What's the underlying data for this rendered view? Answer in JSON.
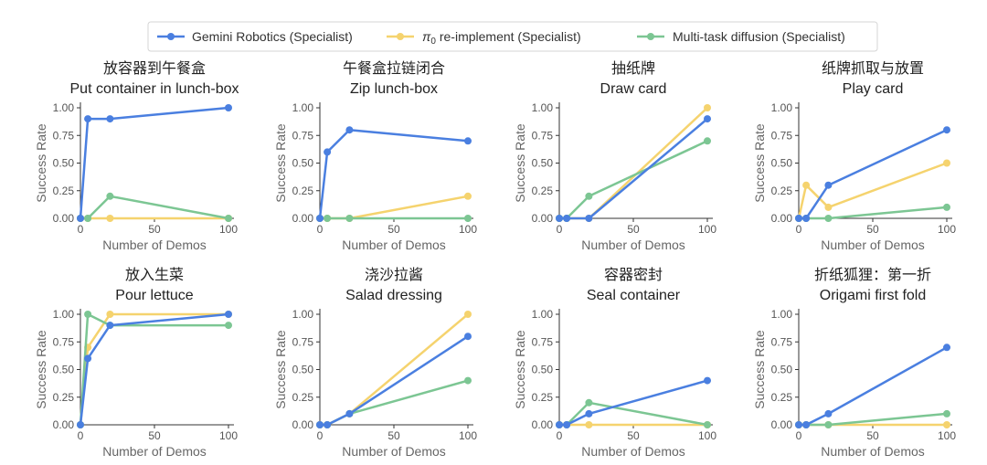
{
  "legend": {
    "entries": [
      {
        "name_pre": "Gemini Robotics (Specialist)",
        "name_sub": "",
        "name_post": "",
        "color": "#4a7fe0"
      },
      {
        "name_pre": "π",
        "name_sub": "0",
        "name_post": " re-implement (Specialist)",
        "color": "#f5d36e"
      },
      {
        "name_pre": "Multi-task diffusion (Specialist)",
        "name_sub": "",
        "name_post": "",
        "color": "#7cc693"
      }
    ]
  },
  "chart_data": [
    {
      "type": "line",
      "title_zh": "放容器到午餐盒",
      "title": "Put container in lunch-box",
      "xlabel": "Number of Demos",
      "ylabel": "Success Rate",
      "xlim": [
        0,
        100
      ],
      "ylim": [
        0,
        1
      ],
      "x_ticks": [
        0,
        50,
        100
      ],
      "y_ticks": [
        "0.00",
        "0.25",
        "0.50",
        "0.75",
        "1.00"
      ],
      "x": [
        0,
        5,
        20,
        100
      ],
      "series": [
        {
          "name": "Gemini Robotics (Specialist)",
          "values": [
            0,
            0.9,
            0.9,
            1.0
          ]
        },
        {
          "name": "π0 re-implement (Specialist)",
          "values": [
            0,
            0,
            0,
            0
          ]
        },
        {
          "name": "Multi-task diffusion (Specialist)",
          "values": [
            0,
            0,
            0.2,
            0
          ]
        }
      ]
    },
    {
      "type": "line",
      "title_zh": "午餐盒拉链闭合",
      "title": "Zip lunch-box",
      "xlabel": "Number of Demos",
      "ylabel": "Success Rate",
      "xlim": [
        0,
        100
      ],
      "ylim": [
        0,
        1
      ],
      "x_ticks": [
        0,
        50,
        100
      ],
      "y_ticks": [
        "0.00",
        "0.25",
        "0.50",
        "0.75",
        "1.00"
      ],
      "x": [
        0,
        5,
        20,
        100
      ],
      "series": [
        {
          "name": "Gemini Robotics (Specialist)",
          "values": [
            0,
            0.6,
            0.8,
            0.7
          ]
        },
        {
          "name": "π0 re-implement (Specialist)",
          "values": [
            0,
            0,
            0,
            0.2
          ]
        },
        {
          "name": "Multi-task diffusion (Specialist)",
          "values": [
            0,
            0,
            0,
            0
          ]
        }
      ]
    },
    {
      "type": "line",
      "title_zh": "抽纸牌",
      "title": "Draw card",
      "xlabel": "Number of Demos",
      "ylabel": "Success Rate",
      "xlim": [
        0,
        100
      ],
      "ylim": [
        0,
        1
      ],
      "x_ticks": [
        0,
        50,
        100
      ],
      "y_ticks": [
        "0.00",
        "0.25",
        "0.50",
        "0.75",
        "1.00"
      ],
      "x": [
        0,
        5,
        20,
        100
      ],
      "series": [
        {
          "name": "Gemini Robotics (Specialist)",
          "values": [
            0,
            0,
            0,
            0.9
          ]
        },
        {
          "name": "π0 re-implement (Specialist)",
          "values": [
            0,
            0,
            0,
            1.0
          ]
        },
        {
          "name": "Multi-task diffusion (Specialist)",
          "values": [
            0,
            0,
            0.2,
            0.7
          ]
        }
      ]
    },
    {
      "type": "line",
      "title_zh": "纸牌抓取与放置",
      "title": "Play card",
      "xlabel": "Number of Demos",
      "ylabel": "Success Rate",
      "xlim": [
        0,
        100
      ],
      "ylim": [
        0,
        1
      ],
      "x_ticks": [
        0,
        50,
        100
      ],
      "y_ticks": [
        "0.00",
        "0.25",
        "0.50",
        "0.75",
        "1.00"
      ],
      "x": [
        0,
        5,
        20,
        100
      ],
      "series": [
        {
          "name": "Gemini Robotics (Specialist)",
          "values": [
            0,
            0,
            0.3,
            0.8
          ]
        },
        {
          "name": "π0 re-implement (Specialist)",
          "values": [
            0,
            0.3,
            0.1,
            0.5
          ]
        },
        {
          "name": "Multi-task diffusion (Specialist)",
          "values": [
            0,
            0,
            0,
            0.1
          ]
        }
      ]
    },
    {
      "type": "line",
      "title_zh": "放入生菜",
      "title": "Pour lettuce",
      "xlabel": "Number of Demos",
      "ylabel": "Success Rate",
      "xlim": [
        0,
        100
      ],
      "ylim": [
        0,
        1
      ],
      "x_ticks": [
        0,
        50,
        100
      ],
      "y_ticks": [
        "0.00",
        "0.25",
        "0.50",
        "0.75",
        "1.00"
      ],
      "x": [
        0,
        5,
        20,
        100
      ],
      "series": [
        {
          "name": "Gemini Robotics (Specialist)",
          "values": [
            0,
            0.6,
            0.9,
            1.0
          ]
        },
        {
          "name": "π0 re-implement (Specialist)",
          "values": [
            0,
            0.7,
            1.0,
            1.0
          ]
        },
        {
          "name": "Multi-task diffusion (Specialist)",
          "values": [
            0,
            1.0,
            0.9,
            0.9
          ]
        }
      ]
    },
    {
      "type": "line",
      "title_zh": "浇沙拉酱",
      "title": "Salad dressing",
      "xlabel": "Number of Demos",
      "ylabel": "Success Rate",
      "xlim": [
        0,
        100
      ],
      "ylim": [
        0,
        1
      ],
      "x_ticks": [
        0,
        50,
        100
      ],
      "y_ticks": [
        "0.00",
        "0.25",
        "0.50",
        "0.75",
        "1.00"
      ],
      "x": [
        0,
        5,
        20,
        100
      ],
      "series": [
        {
          "name": "Gemini Robotics (Specialist)",
          "values": [
            0,
            0,
            0.1,
            0.8
          ]
        },
        {
          "name": "π0 re-implement (Specialist)",
          "values": [
            0,
            0,
            0.1,
            1.0
          ]
        },
        {
          "name": "Multi-task diffusion (Specialist)",
          "values": [
            0,
            0,
            0.1,
            0.4
          ]
        }
      ]
    },
    {
      "type": "line",
      "title_zh": "容器密封",
      "title": "Seal container",
      "xlabel": "Number of Demos",
      "ylabel": "Success Rate",
      "xlim": [
        0,
        100
      ],
      "ylim": [
        0,
        1
      ],
      "x_ticks": [
        0,
        50,
        100
      ],
      "y_ticks": [
        "0.00",
        "0.25",
        "0.50",
        "0.75",
        "1.00"
      ],
      "x": [
        0,
        5,
        20,
        100
      ],
      "series": [
        {
          "name": "Gemini Robotics (Specialist)",
          "values": [
            0,
            0,
            0.1,
            0.4
          ]
        },
        {
          "name": "π0 re-implement (Specialist)",
          "values": [
            0,
            0,
            0,
            0
          ]
        },
        {
          "name": "Multi-task diffusion (Specialist)",
          "values": [
            0,
            0,
            0.2,
            0
          ]
        }
      ]
    },
    {
      "type": "line",
      "title_zh": "折纸狐狸：第一折",
      "title": "Origami first fold",
      "xlabel": "Number of Demos",
      "ylabel": "Success Rate",
      "xlim": [
        0,
        100
      ],
      "ylim": [
        0,
        1
      ],
      "x_ticks": [
        0,
        50,
        100
      ],
      "y_ticks": [
        "0.00",
        "0.25",
        "0.50",
        "0.75",
        "1.00"
      ],
      "x": [
        0,
        5,
        20,
        100
      ],
      "series": [
        {
          "name": "Gemini Robotics (Specialist)",
          "values": [
            0,
            0,
            0.1,
            0.7
          ]
        },
        {
          "name": "π0 re-implement (Specialist)",
          "values": [
            0,
            0,
            0,
            0
          ]
        },
        {
          "name": "Multi-task diffusion (Specialist)",
          "values": [
            0,
            0,
            0,
            0.1
          ]
        }
      ]
    }
  ]
}
